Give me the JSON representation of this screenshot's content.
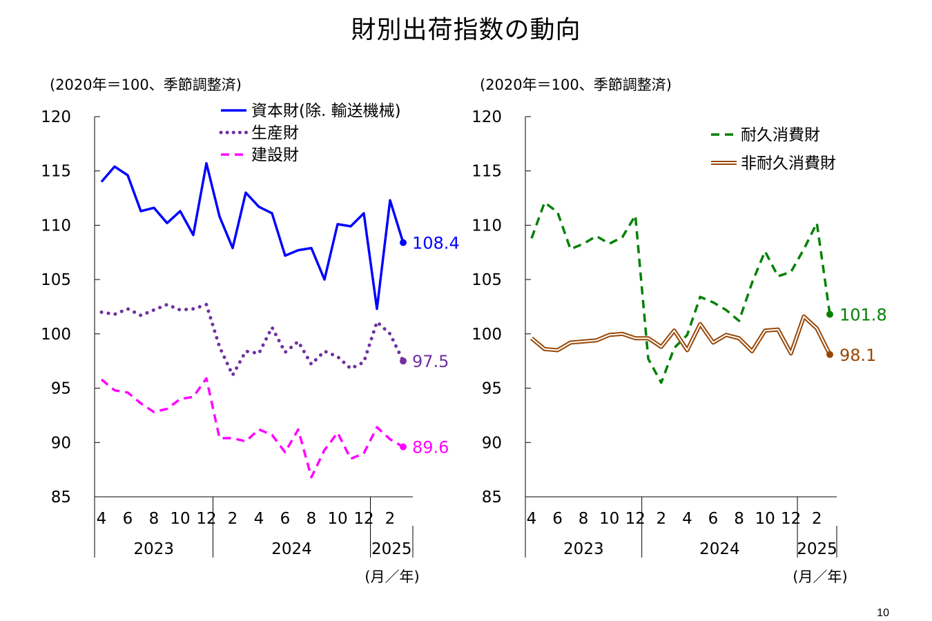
{
  "page": {
    "title": "財別出荷指数の動向",
    "page_number": "10"
  },
  "chart_data": [
    {
      "type": "line",
      "unit_note": "(2020年＝100、季節調整済)",
      "xlabel": "(月／年)",
      "ylim": [
        85,
        120
      ],
      "yticks": [
        "85",
        "90",
        "95",
        "100",
        "105",
        "110",
        "115",
        "120"
      ],
      "x_tick_labels": [
        "4",
        "6",
        "8",
        "10",
        "12",
        "2",
        "4",
        "6",
        "8",
        "10",
        "12",
        "2"
      ],
      "years": [
        "2023",
        "2024",
        "2025"
      ],
      "months": [
        "2023-04",
        "2023-05",
        "2023-06",
        "2023-07",
        "2023-08",
        "2023-09",
        "2023-10",
        "2023-11",
        "2023-12",
        "2024-01",
        "2024-02",
        "2024-03",
        "2024-04",
        "2024-05",
        "2024-06",
        "2024-07",
        "2024-08",
        "2024-09",
        "2024-10",
        "2024-11",
        "2024-12",
        "2025-01",
        "2025-02",
        "2025-03"
      ],
      "legend_position": "top-right",
      "series": [
        {
          "name": "資本財(除. 輸送機械)",
          "color": "#0000ff",
          "style": "solid",
          "end_label": "108.4",
          "values": [
            114.0,
            115.4,
            114.6,
            111.3,
            111.6,
            110.2,
            111.3,
            109.1,
            115.7,
            110.8,
            107.9,
            113.0,
            111.7,
            111.1,
            107.2,
            107.7,
            107.9,
            105.0,
            110.1,
            109.9,
            111.1,
            102.3,
            112.3,
            108.4
          ]
        },
        {
          "name": "生産財",
          "color": "#7030a0",
          "style": "dotted",
          "end_label": "97.5",
          "values": [
            102.0,
            101.8,
            102.3,
            101.7,
            102.2,
            102.7,
            102.2,
            102.3,
            102.7,
            98.8,
            96.2,
            98.4,
            98.2,
            100.6,
            98.3,
            99.3,
            97.2,
            98.4,
            97.9,
            96.8,
            97.4,
            101.1,
            100.0,
            97.5
          ]
        },
        {
          "name": "建設財",
          "color": "#ff00ff",
          "style": "dashed",
          "end_label": "89.6",
          "values": [
            95.8,
            94.8,
            94.6,
            93.6,
            92.8,
            93.1,
            94.0,
            94.2,
            95.9,
            90.4,
            90.4,
            90.1,
            91.2,
            90.7,
            89.1,
            91.2,
            86.8,
            89.3,
            90.9,
            88.5,
            89.0,
            91.4,
            90.3,
            89.6
          ]
        }
      ]
    },
    {
      "type": "line",
      "unit_note": "(2020年＝100、季節調整済)",
      "xlabel": "(月／年)",
      "ylim": [
        85,
        120
      ],
      "yticks": [
        "85",
        "90",
        "95",
        "100",
        "105",
        "110",
        "115",
        "120"
      ],
      "x_tick_labels": [
        "4",
        "6",
        "8",
        "10",
        "12",
        "2",
        "4",
        "6",
        "8",
        "10",
        "12",
        "2"
      ],
      "years": [
        "2023",
        "2024",
        "2025"
      ],
      "months": [
        "2023-04",
        "2023-05",
        "2023-06",
        "2023-07",
        "2023-08",
        "2023-09",
        "2023-10",
        "2023-11",
        "2023-12",
        "2024-01",
        "2024-02",
        "2024-03",
        "2024-04",
        "2024-05",
        "2024-06",
        "2024-07",
        "2024-08",
        "2024-09",
        "2024-10",
        "2024-11",
        "2024-12",
        "2025-01",
        "2025-02",
        "2025-03"
      ],
      "legend_position": "top-right",
      "series": [
        {
          "name": "耐久消費財",
          "color": "#008000",
          "style": "dashed",
          "end_label": "101.8",
          "values": [
            108.8,
            112.1,
            111.2,
            107.8,
            108.3,
            109.0,
            108.3,
            108.9,
            110.9,
            97.7,
            95.5,
            98.7,
            99.9,
            103.4,
            102.9,
            102.2,
            101.2,
            104.7,
            107.6,
            105.3,
            105.7,
            107.8,
            110.2,
            101.8
          ]
        },
        {
          "name": "非耐久消費財",
          "color": "#974706",
          "style": "double",
          "end_label": "98.1",
          "values": [
            99.6,
            98.6,
            98.5,
            99.2,
            99.3,
            99.4,
            99.9,
            100.0,
            99.6,
            99.6,
            98.8,
            100.3,
            98.5,
            100.9,
            99.2,
            99.9,
            99.6,
            98.4,
            100.3,
            100.4,
            98.2,
            101.6,
            100.5,
            98.1
          ]
        }
      ]
    }
  ]
}
